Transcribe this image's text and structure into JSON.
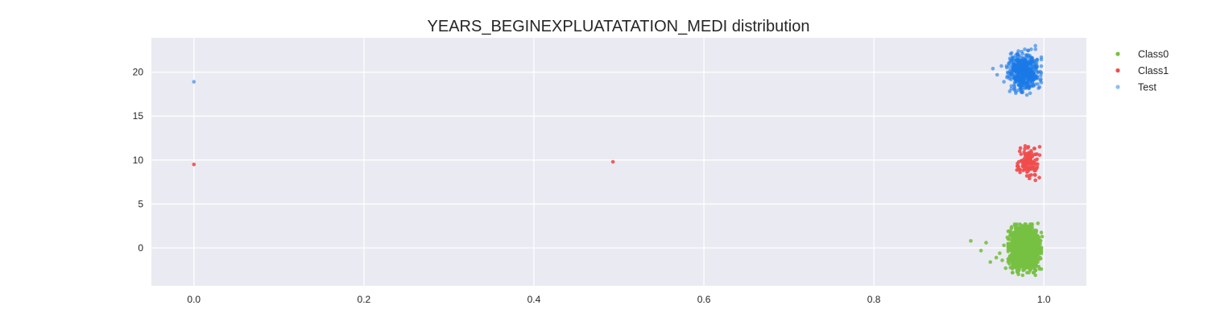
{
  "chart_data": {
    "type": "scatter",
    "title": "YEARS_BEGINEXPLUATATATION_MEDI distribution",
    "xlabel": "",
    "ylabel": "",
    "xlim": [
      -0.05,
      1.05
    ],
    "ylim": [
      -4.3,
      23.9
    ],
    "x_ticks": [
      0.0,
      0.2,
      0.4,
      0.6,
      0.8,
      1.0
    ],
    "x_tick_labels": [
      "0.0",
      "0.2",
      "0.4",
      "0.6",
      "0.8",
      "1.0"
    ],
    "y_ticks": [
      0,
      5,
      10,
      15,
      20
    ],
    "y_tick_labels": [
      "0",
      "5",
      "10",
      "15",
      "20"
    ],
    "grid": true,
    "legend_position": "outside-top-right",
    "series": [
      {
        "name": "Class0",
        "color": "#77c043",
        "center_y": 0,
        "points": [
          [
            0.914,
            0.8
          ],
          [
            0.926,
            -0.3
          ],
          [
            0.932,
            0.6
          ],
          [
            0.937,
            -1.6
          ],
          [
            0.944,
            -1.1
          ],
          [
            0.948,
            -0.6
          ],
          [
            0.951,
            -1.4
          ],
          [
            0.953,
            0.3
          ],
          [
            0.955,
            -2.3
          ],
          [
            0.957,
            1.2
          ],
          [
            0.96,
            -0.9
          ],
          [
            0.962,
            2.4
          ],
          [
            0.963,
            -2.8
          ],
          [
            0.965,
            -1.9
          ],
          [
            0.966,
            1.6
          ],
          [
            0.968,
            2.7
          ],
          [
            0.97,
            -3.0
          ],
          [
            0.972,
            2.2
          ],
          [
            0.975,
            -3.1
          ],
          [
            0.985,
            2.6
          ],
          [
            0.99,
            -3.1
          ],
          [
            0.993,
            2.8
          ],
          [
            0.997,
            -2.4
          ],
          [
            0.998,
            1.3
          ]
        ],
        "cluster": {
          "x_range": [
            0.958,
            0.997
          ],
          "y_range": [
            -2.8,
            2.7
          ],
          "count": 1500
        }
      },
      {
        "name": "Class1",
        "color": "#f04c4c",
        "center_y": 10,
        "points": [
          [
            0.0,
            9.5
          ],
          [
            0.493,
            9.8
          ],
          [
            0.969,
            9.6
          ],
          [
            0.972,
            8.6
          ],
          [
            0.978,
            11.6
          ],
          [
            0.98,
            8.2
          ],
          [
            0.989,
            11.3
          ],
          [
            0.995,
            11.5
          ],
          [
            0.992,
            9.2
          ],
          [
            0.983,
            7.9
          ],
          [
            0.99,
            7.7
          ]
        ],
        "cluster": {
          "x_range": [
            0.968,
            0.995
          ],
          "y_range": [
            8.0,
            11.5
          ],
          "count": 110
        }
      },
      {
        "name": "Test",
        "color": "#1a7ae6",
        "legend_color": "#8cc0ef",
        "center_y": 20,
        "points": [
          [
            0.0,
            18.9
          ],
          [
            0.94,
            20.4
          ],
          [
            0.945,
            19.7
          ],
          [
            0.95,
            20.7
          ],
          [
            0.953,
            18.9
          ],
          [
            0.958,
            19.9
          ],
          [
            0.962,
            21.3
          ],
          [
            0.965,
            18.0
          ],
          [
            0.97,
            22.0
          ],
          [
            0.975,
            17.7
          ],
          [
            0.985,
            22.6
          ],
          [
            0.99,
            23.0
          ],
          [
            0.995,
            18.3
          ],
          [
            0.997,
            21.7
          ],
          [
            0.98,
            17.4
          ]
        ],
        "cluster": {
          "x_range": [
            0.956,
            0.997
          ],
          "y_range": [
            17.6,
            22.6
          ],
          "count": 480
        }
      }
    ]
  }
}
